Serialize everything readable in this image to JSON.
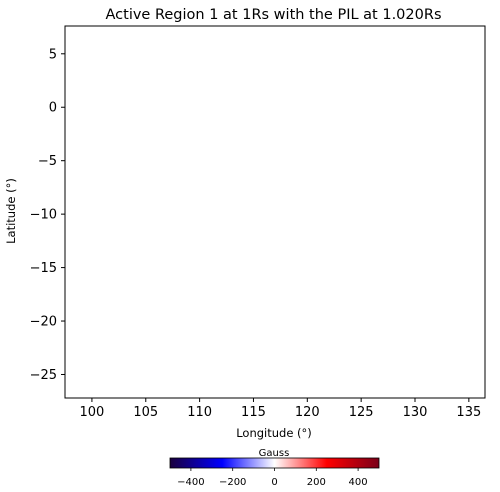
{
  "chart_data": [
    {
      "type": "heatmap",
      "title": "Active Region 1 at 1Rs with the PIL at 1.020Rs",
      "xlabel": "Longitude (°)",
      "ylabel": "Latitude (°)",
      "xlim": [
        97.5,
        136.5
      ],
      "ylim": [
        -27.2,
        7.6
      ],
      "xticks": [
        100,
        105,
        110,
        115,
        120,
        125,
        130,
        135
      ],
      "xtick_labels": [
        "100",
        "105",
        "110",
        "115",
        "120",
        "125",
        "130",
        "135"
      ],
      "yticks": [
        5,
        0,
        -5,
        -10,
        -15,
        -20,
        -25
      ],
      "ytick_labels": [
        "5",
        "0",
        "−5",
        "−10",
        "−15",
        "−20",
        "−25"
      ],
      "grid": false,
      "values": []
    },
    {
      "type": "colorbar",
      "label": "Gauss",
      "orientation": "horizontal",
      "range": [
        -500,
        500
      ],
      "ticks": [
        -400,
        -200,
        0,
        200,
        400
      ],
      "tick_labels": [
        "−400",
        "−200",
        "0",
        "200",
        "400"
      ],
      "colormap": [
        "#1a003d",
        "#0000ff",
        "#ffffff",
        "#ff0000",
        "#7a0019"
      ]
    }
  ]
}
